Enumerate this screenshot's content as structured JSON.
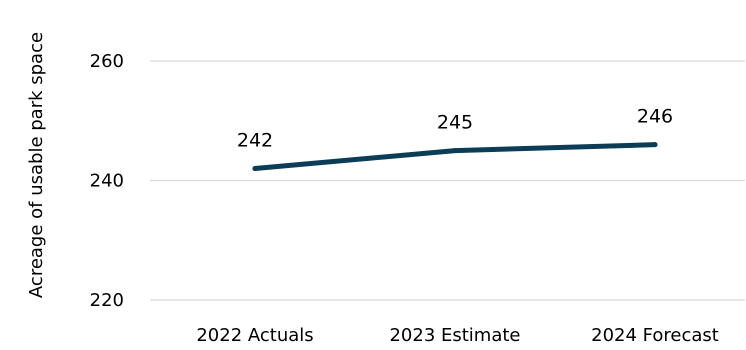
{
  "chart_data": {
    "type": "line",
    "title": "",
    "xlabel": "",
    "ylabel": "Acreage of usable park space",
    "categories": [
      "2022 Actuals",
      "2023 Estimate",
      "2024 Forecast"
    ],
    "series": [
      {
        "values": [
          242,
          245,
          246
        ],
        "color": "#0b3d57"
      }
    ],
    "ylim": [
      220,
      260
    ],
    "yticks": [
      220,
      240,
      260
    ],
    "grid": true,
    "show_data_labels": true,
    "legend": "none"
  }
}
